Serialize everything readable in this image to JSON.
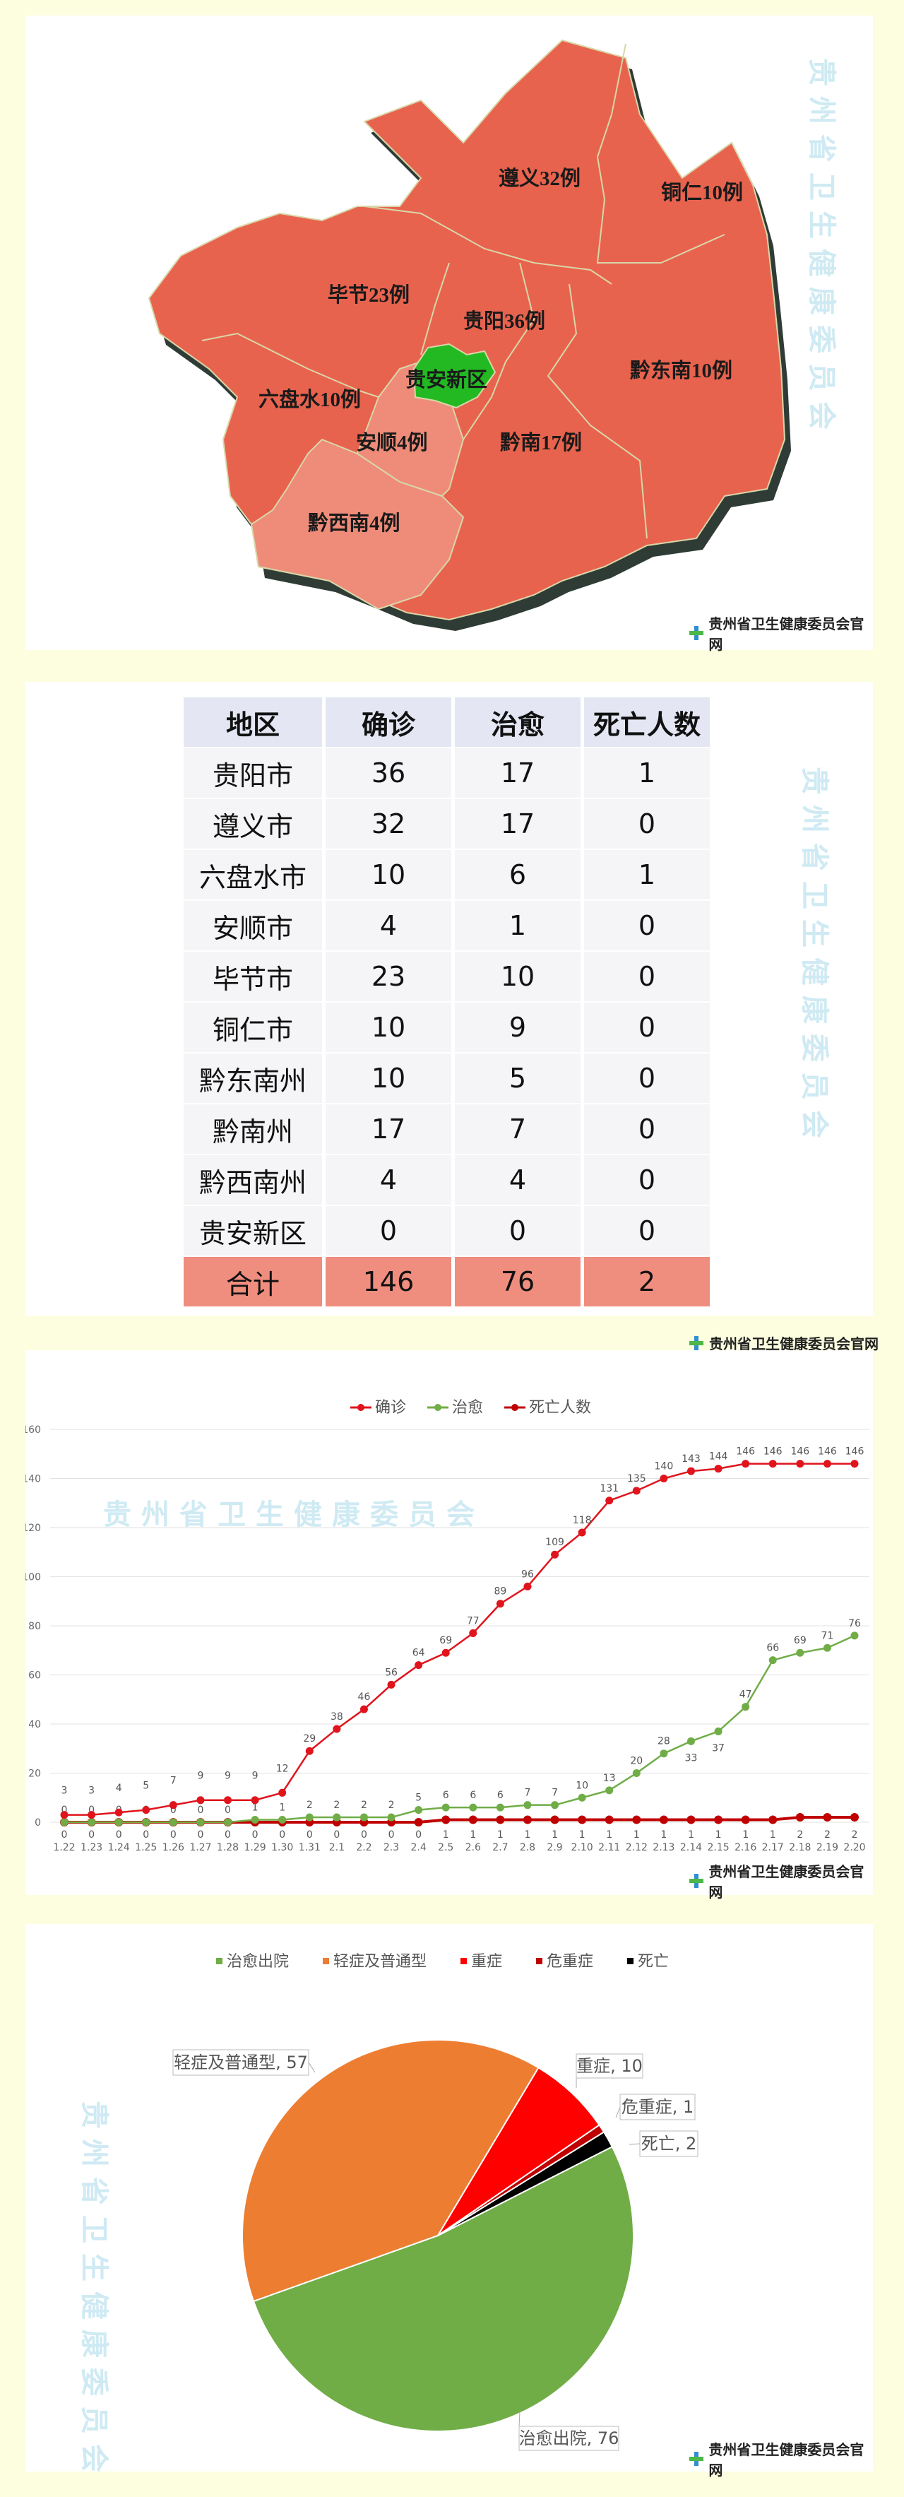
{
  "watermark": "贵州省卫生健康委员会",
  "source_logo": "贵州省卫生健康委员会官网",
  "map": {
    "colors": {
      "high": "#e8634e",
      "low": "#ee8c79",
      "guian": "#22b922",
      "shadow": "#2f3c36"
    },
    "regions": [
      {
        "key": "zunyi",
        "label": "遵义32例"
      },
      {
        "key": "tongren",
        "label": "铜仁10例"
      },
      {
        "key": "bijie",
        "label": "毕节23例"
      },
      {
        "key": "guiyang",
        "label": "贵阳36例"
      },
      {
        "key": "guian",
        "label": "贵安新区"
      },
      {
        "key": "liupanshui",
        "label": "六盘水10例"
      },
      {
        "key": "anshun",
        "label": "安顺4例"
      },
      {
        "key": "qiannan",
        "label": "黔南17例"
      },
      {
        "key": "qiandongnan",
        "label": "黔东南10例"
      },
      {
        "key": "qianxinan",
        "label": "黔西南4例"
      }
    ]
  },
  "table": {
    "headers": [
      "地区",
      "确诊",
      "治愈",
      "死亡人数"
    ],
    "rows": [
      [
        "贵阳市",
        "36",
        "17",
        "1"
      ],
      [
        "遵义市",
        "32",
        "17",
        "0"
      ],
      [
        "六盘水市",
        "10",
        "6",
        "1"
      ],
      [
        "安顺市",
        "4",
        "1",
        "0"
      ],
      [
        "毕节市",
        "23",
        "10",
        "0"
      ],
      [
        "铜仁市",
        "10",
        "9",
        "0"
      ],
      [
        "黔东南州",
        "10",
        "5",
        "0"
      ],
      [
        "黔南州",
        "17",
        "7",
        "0"
      ],
      [
        "黔西南州",
        "4",
        "4",
        "0"
      ],
      [
        "贵安新区",
        "0",
        "0",
        "0"
      ]
    ],
    "total": [
      "合计",
      "146",
      "76",
      "2"
    ]
  },
  "chart_data": [
    {
      "type": "line",
      "x": [
        "1.22",
        "1.23",
        "1.24",
        "1.25",
        "1.26",
        "1.27",
        "1.28",
        "1.29",
        "1.30",
        "1.31",
        "2.1",
        "2.2",
        "2.3",
        "2.4",
        "2.5",
        "2.6",
        "2.7",
        "2.8",
        "2.9",
        "2.10",
        "2.11",
        "2.12",
        "2.13",
        "2.14",
        "2.15",
        "2.16",
        "2.17",
        "2.18",
        "2.19",
        "2.20"
      ],
      "series": [
        {
          "name": "确诊",
          "color": "#e0141c",
          "values": [
            3,
            3,
            4,
            5,
            7,
            9,
            9,
            9,
            12,
            29,
            38,
            46,
            56,
            64,
            69,
            77,
            89,
            96,
            109,
            118,
            131,
            135,
            140,
            143,
            144,
            146,
            146,
            146,
            146,
            146
          ]
        },
        {
          "name": "治愈",
          "color": "#70ad47",
          "values": [
            0,
            0,
            0,
            0,
            0,
            0,
            0,
            1,
            1,
            2,
            2,
            2,
            2,
            5,
            6,
            6,
            6,
            7,
            7,
            10,
            13,
            20,
            28,
            33,
            37,
            47,
            66,
            69,
            71,
            76
          ]
        },
        {
          "name": "死亡人数",
          "color": "#c00000",
          "values": [
            0,
            0,
            0,
            0,
            0,
            0,
            0,
            0,
            0,
            0,
            0,
            0,
            0,
            0,
            1,
            1,
            1,
            1,
            1,
            1,
            1,
            1,
            1,
            1,
            1,
            1,
            1,
            2,
            2,
            2
          ]
        }
      ],
      "ylim": [
        0,
        160
      ],
      "yticks": [
        0,
        20,
        40,
        60,
        80,
        100,
        120,
        140,
        160
      ],
      "grid": true,
      "legend": "top"
    },
    {
      "type": "pie",
      "categories": [
        "治愈出院",
        "轻症及普通型",
        "重症",
        "危重症",
        "死亡"
      ],
      "values": [
        76,
        57,
        10,
        1,
        2
      ],
      "colors": [
        "#70ad47",
        "#ed7d31",
        "#ff0000",
        "#c00000",
        "#000000"
      ],
      "data_labels": [
        "治愈出院, 76",
        "轻症及普通型, 57",
        "重症, 10",
        "危重症, 1",
        "死亡, 2"
      ],
      "legend": "top"
    }
  ]
}
